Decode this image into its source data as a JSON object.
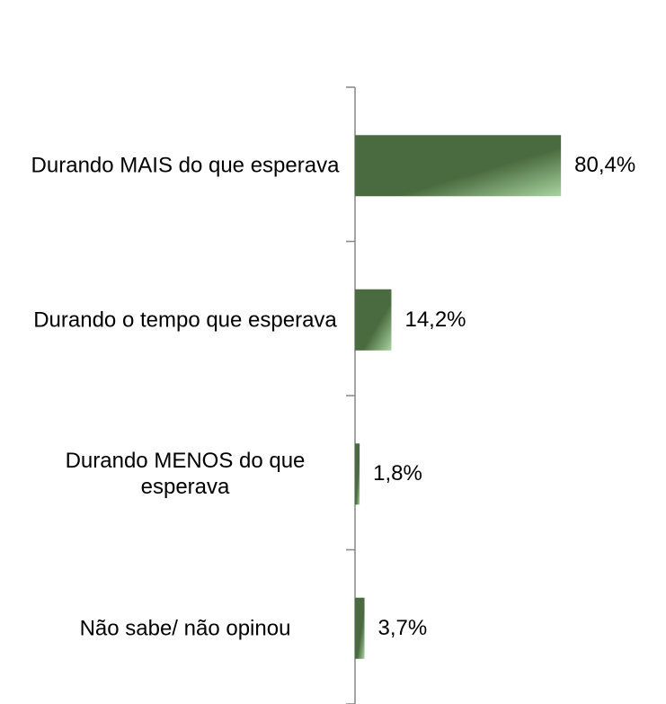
{
  "chart_data": {
    "type": "bar",
    "orientation": "horizontal",
    "categories": [
      "Durando MAIS do que esperava",
      "Durando o tempo que esperava",
      "Durando MENOS do que esperava",
      "Não sabe/ não opinou"
    ],
    "values": [
      80.4,
      14.2,
      1.8,
      3.7
    ],
    "value_labels": [
      "80,4%",
      "14,2%",
      "1,8%",
      "3,7%"
    ],
    "color": "#4a6b3f"
  }
}
